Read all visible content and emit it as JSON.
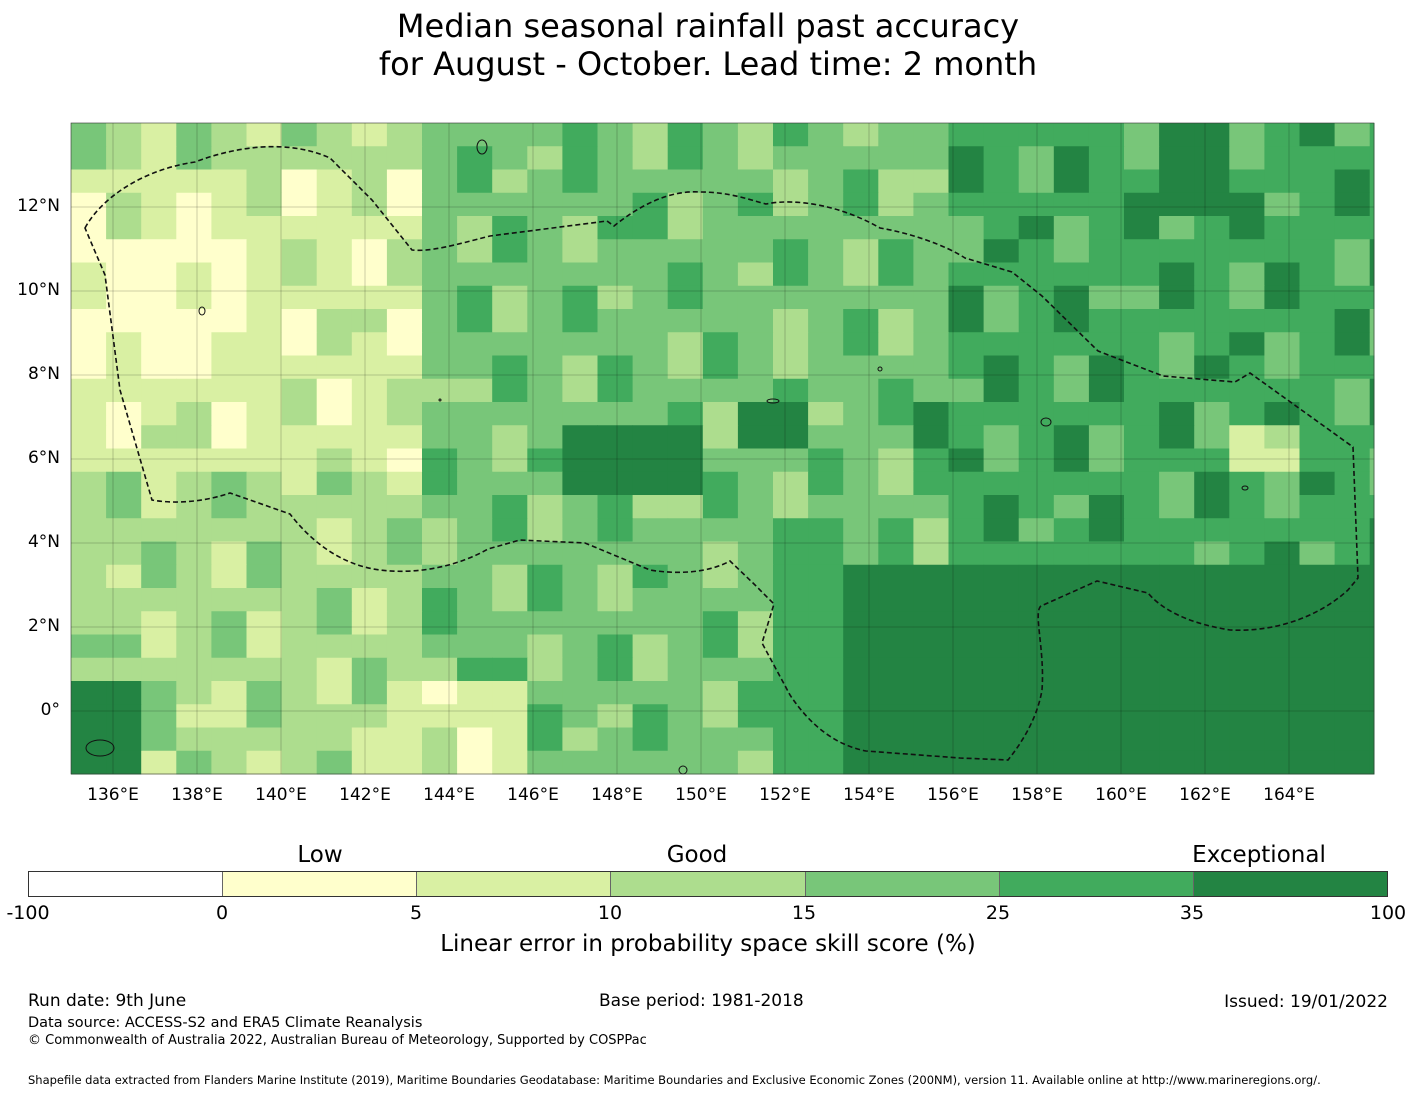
{
  "title": {
    "line1": "Median seasonal rainfall past accuracy",
    "line2": "for August - October. Lead time: 2 month"
  },
  "map": {
    "lat_labels": [
      "12°N",
      "10°N",
      "8°N",
      "6°N",
      "4°N",
      "2°N",
      "0°"
    ],
    "lon_labels": [
      "136°E",
      "138°E",
      "140°E",
      "142°E",
      "144°E",
      "146°E",
      "148°E",
      "150°E",
      "152°E",
      "154°E",
      "156°E",
      "158°E",
      "160°E",
      "162°E",
      "164°E"
    ]
  },
  "legend": {
    "categories": [
      "Low",
      "Good",
      "Exceptional"
    ],
    "ticks": [
      "-100",
      "0",
      "5",
      "10",
      "15",
      "25",
      "35",
      "100"
    ],
    "colors": [
      "#ffffff",
      "#ffffcc",
      "#d9f0a3",
      "#addd8e",
      "#78c679",
      "#41ab5d",
      "#238443"
    ],
    "label": "Linear error in probability space skill score (%)"
  },
  "footer": {
    "run_date": "Run date: 9th June",
    "base_period": "Base period: 1981-2018",
    "issued": "Issued: 19/01/2022",
    "data_source": "Data source: ACCESS-S2 and ERA5 Climate Reanalysis",
    "copyright": "© Commonwealth of Australia 2022, Australian Bureau of Meteorology, Supported by COSPPac",
    "shapefile": "Shapefile data extracted from Flanders Marine Institute (2019), Maritime Boundaries Geodatabase: Maritime Boundaries and Exclusive Economic Zones (200NM), version 11. Available online at http://www.marineregions.org/."
  }
}
